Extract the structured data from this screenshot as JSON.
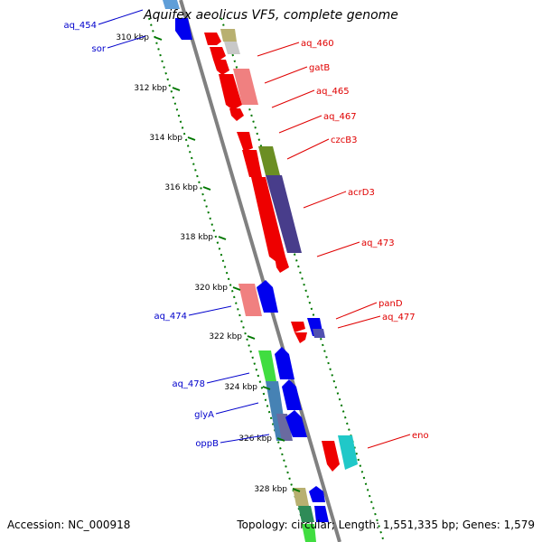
{
  "header": {
    "title": "Aquifex aeolicus VF5, complete genome"
  },
  "footer": {
    "accession": "Accession: NC_000918",
    "topology": "Topology: circular; Length: 1,551,335 bp; Genes: 1,579"
  },
  "colors": {
    "forward_label": "#e00000",
    "reverse_label": "#0000cc",
    "backbone": "#808080",
    "tick": "#007700"
  },
  "ticks": [
    {
      "label": "310 kbp"
    },
    {
      "label": "312 kbp"
    },
    {
      "label": "314 kbp"
    },
    {
      "label": "316 kbp"
    },
    {
      "label": "318 kbp"
    },
    {
      "label": "320 kbp"
    },
    {
      "label": "322 kbp"
    },
    {
      "label": "324 kbp"
    },
    {
      "label": "326 kbp"
    },
    {
      "label": "328 kbp"
    }
  ],
  "gene_labels_forward": [
    {
      "text": "aq_460"
    },
    {
      "text": "gatB"
    },
    {
      "text": "aq_465"
    },
    {
      "text": "aq_467"
    },
    {
      "text": "czcB3"
    },
    {
      "text": "acrD3"
    },
    {
      "text": "aq_473"
    },
    {
      "text": "panD"
    },
    {
      "text": "aq_477"
    },
    {
      "text": "eno"
    }
  ],
  "gene_labels_reverse": [
    {
      "text": "aq_454"
    },
    {
      "text": "sor"
    },
    {
      "text": "aq_474"
    },
    {
      "text": "aq_478"
    },
    {
      "text": "glyA"
    },
    {
      "text": "oppB"
    }
  ]
}
